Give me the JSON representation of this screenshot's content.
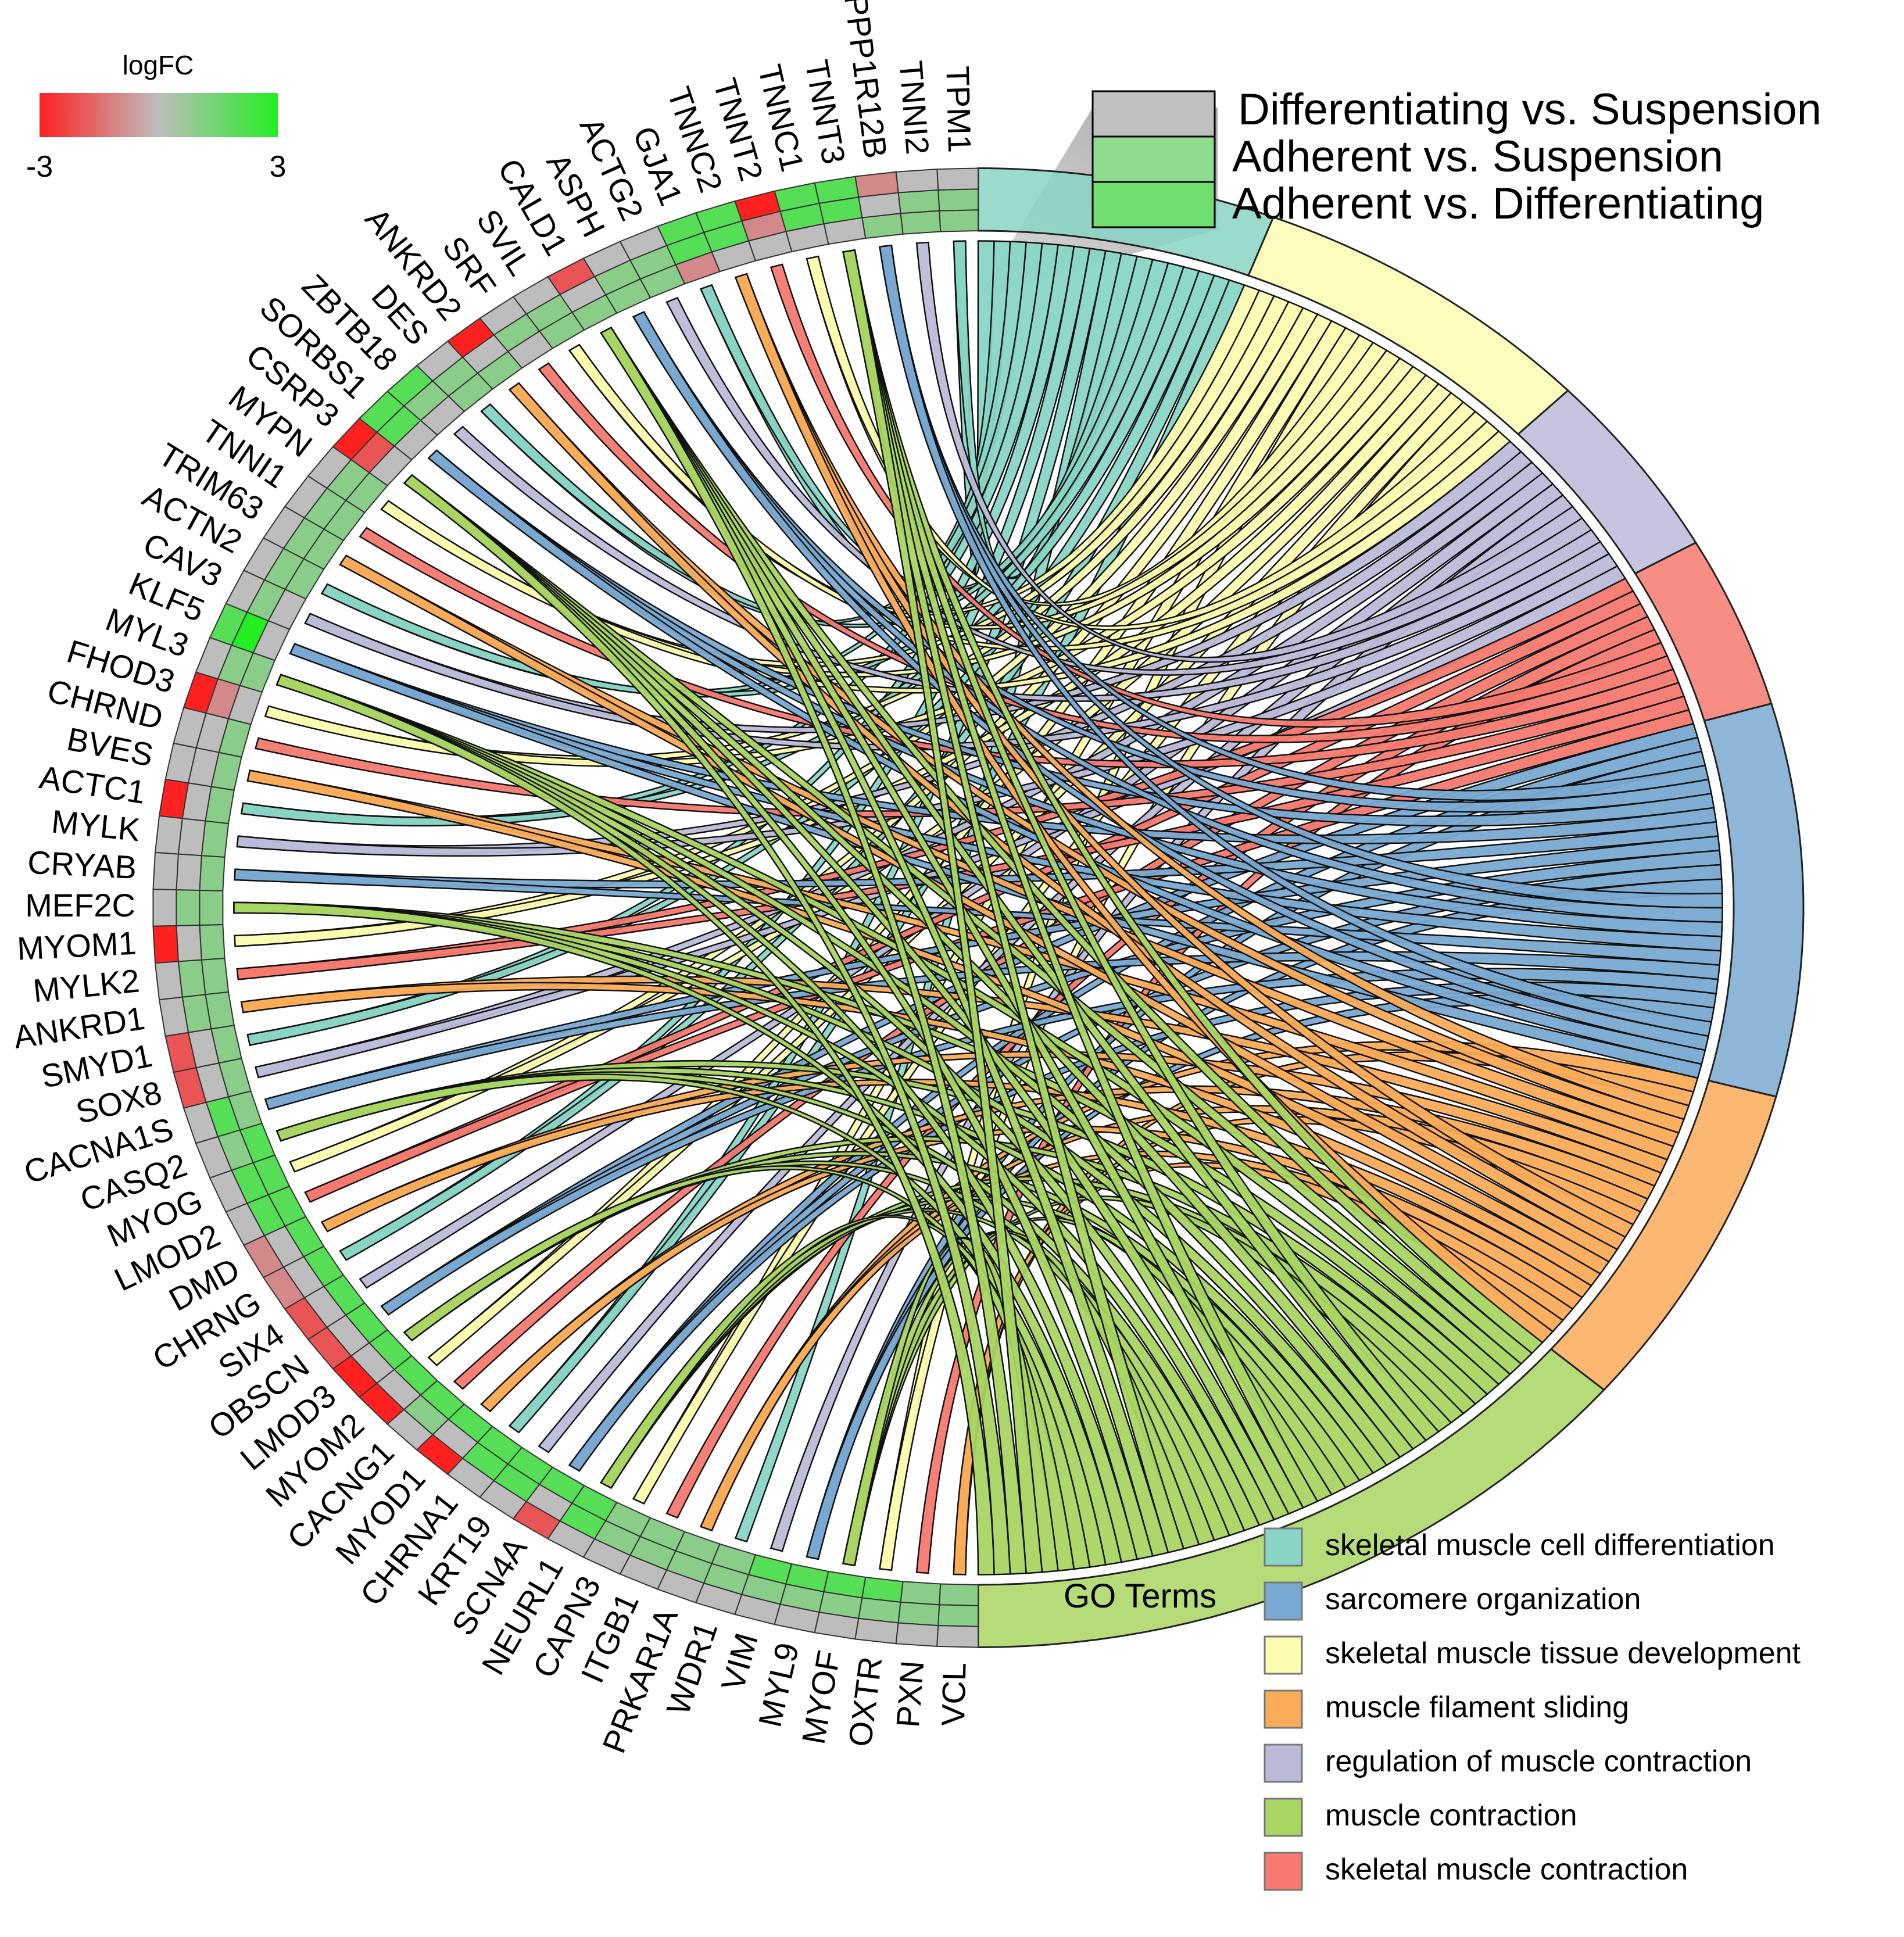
{
  "colorbar": {
    "title": "logFC",
    "min_label": "-3",
    "max_label": "3",
    "min": -3,
    "max": 3,
    "colors": [
      "#ff2020",
      "#bdbdbd",
      "#22ee22"
    ]
  },
  "comparisons": {
    "items": [
      {
        "label": "Differentiating vs. Suspension",
        "color": "#c0c0c0"
      },
      {
        "label": "Adherent vs. Suspension",
        "color": "#8fdc8f"
      },
      {
        "label": "Adherent vs. Differentiating",
        "color": "#6fe06f"
      }
    ]
  },
  "go_legend": {
    "title": "GO Terms",
    "items": [
      {
        "label": "skeletal muscle cell differentiation",
        "color": "#88d5c6"
      },
      {
        "label": "sarcomere organization",
        "color": "#79a9d2"
      },
      {
        "label": "skeletal muscle tissue development",
        "color": "#fcfcb1"
      },
      {
        "label": "muscle filament sliding",
        "color": "#fbac59"
      },
      {
        "label": "regulation of muscle contraction",
        "color": "#bcbad9"
      },
      {
        "label": "muscle contraction",
        "color": "#a9d562"
      },
      {
        "label": "skeletal muscle contraction",
        "color": "#f7796f"
      }
    ]
  },
  "chart_data": {
    "type": "chord",
    "title": "",
    "genes": [
      "TPM1",
      "TNNI2",
      "PPP1R12B",
      "TNNT3",
      "TNNC1",
      "TNNT2",
      "TNNC2",
      "GJA1",
      "ACTG2",
      "ASPH",
      "CALD1",
      "SVIL",
      "SRF",
      "ANKRD2",
      "DES",
      "ZBTB18",
      "SORBS1",
      "CSRP3",
      "MYPN",
      "TNNI1",
      "TRIM63",
      "ACTN2",
      "CAV3",
      "KLF5",
      "MYL3",
      "FHOD3",
      "CHRND",
      "BVES",
      "ACTC1",
      "MYLK",
      "CRYAB",
      "MEF2C",
      "MYOM1",
      "MYLK2",
      "ANKRD1",
      "SMYD1",
      "SOX8",
      "CACNA1S",
      "CASQ2",
      "MYOG",
      "LMOD2",
      "DMD",
      "CHRNG",
      "SIX4",
      "OBSCN",
      "LMOD3",
      "MYOM2",
      "CACNG1",
      "MYOD1",
      "CHRNA1",
      "KRT19",
      "SCN4A",
      "NEURL1",
      "CAPN3",
      "ITGB1",
      "PRKAR1A",
      "WDR1",
      "VIM",
      "MYL9",
      "MYOF",
      "OXTR",
      "PXN",
      "VCL"
    ],
    "logfc": [
      [
        0,
        1,
        1
      ],
      [
        0,
        1,
        1
      ],
      [
        -1,
        0,
        1
      ],
      [
        2,
        2,
        0
      ],
      [
        2,
        2,
        0
      ],
      [
        -3,
        -1,
        0
      ],
      [
        2,
        2,
        0
      ],
      [
        2,
        2,
        -1
      ],
      [
        0,
        1,
        1
      ],
      [
        0,
        1,
        1
      ],
      [
        -2,
        0,
        1
      ],
      [
        0,
        1,
        1
      ],
      [
        0,
        1,
        0
      ],
      [
        -3,
        0,
        1
      ],
      [
        0,
        1,
        1
      ],
      [
        2,
        1,
        0
      ],
      [
        2,
        2,
        0
      ],
      [
        -3,
        -2,
        0
      ],
      [
        0,
        1,
        1
      ],
      [
        0,
        1,
        1
      ],
      [
        0,
        1,
        1
      ],
      [
        0,
        1,
        1
      ],
      [
        0,
        1,
        0
      ],
      [
        2,
        3,
        0
      ],
      [
        0,
        1,
        1
      ],
      [
        -3,
        -1,
        0
      ],
      [
        0,
        0,
        1
      ],
      [
        0,
        0,
        1
      ],
      [
        -3,
        0,
        1
      ],
      [
        0,
        0,
        1
      ],
      [
        0,
        0,
        1
      ],
      [
        0,
        1,
        1
      ],
      [
        -3,
        0,
        1
      ],
      [
        0,
        1,
        1
      ],
      [
        0,
        1,
        1
      ],
      [
        -2,
        0,
        1
      ],
      [
        -2,
        0,
        1
      ],
      [
        0,
        2,
        1
      ],
      [
        0,
        1,
        2
      ],
      [
        0,
        2,
        2
      ],
      [
        0,
        2,
        2
      ],
      [
        -1,
        0,
        2
      ],
      [
        -1,
        0,
        2
      ],
      [
        -2,
        0,
        2
      ],
      [
        -2,
        0,
        2
      ],
      [
        -3,
        0,
        2
      ],
      [
        -3,
        0,
        2
      ],
      [
        0,
        1,
        2
      ],
      [
        -3,
        0,
        2
      ],
      [
        0,
        2,
        2
      ],
      [
        0,
        2,
        2
      ],
      [
        -2,
        0,
        2
      ],
      [
        0,
        2,
        2
      ],
      [
        0,
        1,
        1
      ],
      [
        0,
        1,
        1
      ],
      [
        0,
        1,
        1
      ],
      [
        0,
        1,
        1
      ],
      [
        0,
        1,
        2
      ],
      [
        0,
        1,
        2
      ],
      [
        0,
        1,
        2
      ],
      [
        0,
        1,
        2
      ],
      [
        0,
        1,
        1
      ],
      [
        0,
        1,
        1
      ]
    ],
    "terms": [
      {
        "name": "skeletal muscle cell differentiation",
        "count": 17,
        "color": "#88d5c6"
      },
      {
        "name": "skeletal muscle tissue development",
        "count": 20,
        "color": "#fcfcb1"
      },
      {
        "name": "regulation of muscle contraction",
        "count": 12,
        "color": "#bcbad9"
      },
      {
        "name": "skeletal muscle contraction",
        "count": 11,
        "color": "#f7796f"
      },
      {
        "name": "sarcomere organization",
        "count": 25,
        "color": "#79a9d2"
      },
      {
        "name": "muscle filament sliding",
        "count": 21,
        "color": "#fbac59"
      },
      {
        "name": "muscle contraction",
        "count": 40,
        "color": "#a9d562"
      }
    ]
  }
}
